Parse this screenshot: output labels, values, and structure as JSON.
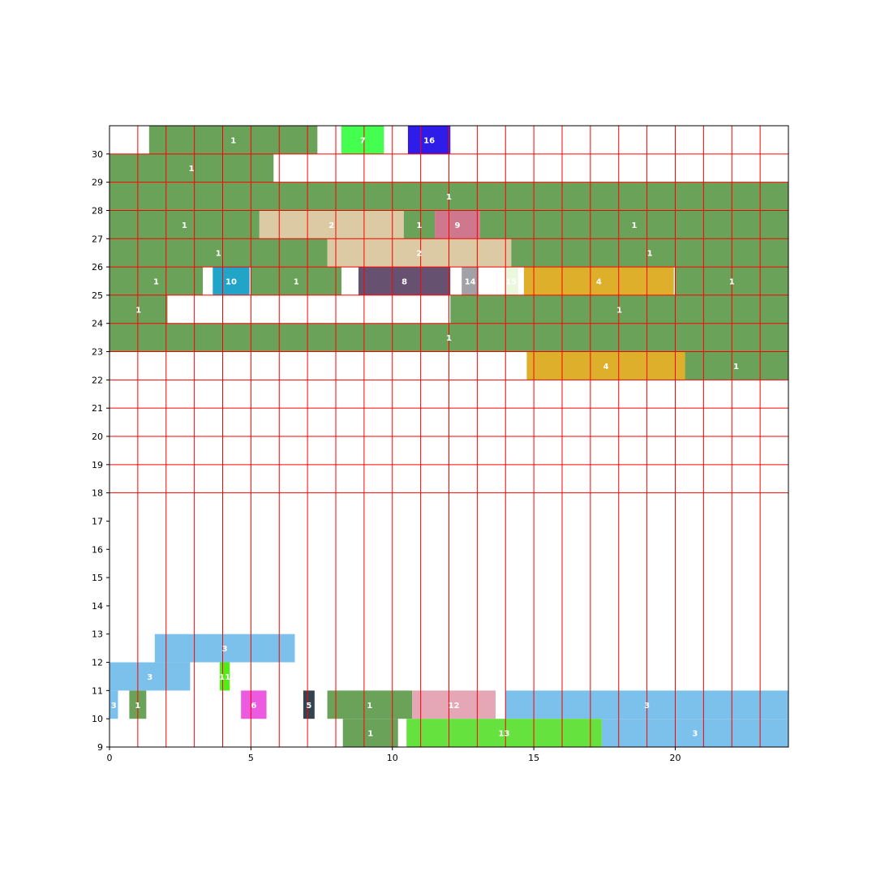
{
  "chart_data": {
    "type": "gantt",
    "title": "",
    "xlabel": "",
    "ylabel": "",
    "xlim": [
      0,
      24
    ],
    "ylim": [
      9,
      31
    ],
    "xticks": [
      0,
      5,
      10,
      15,
      20
    ],
    "yticks": [
      9,
      10,
      11,
      12,
      13,
      14,
      15,
      16,
      17,
      18,
      19,
      20,
      21,
      22,
      23,
      24,
      25,
      26,
      27,
      28,
      29,
      30
    ],
    "grid": {
      "color": "#ff0000",
      "vertical_step": 1,
      "horizontal_step": 1,
      "horizontal_from": 18
    },
    "colors": {
      "1": "#6ba25a",
      "2": "#dbcaa3",
      "3": "#7bc1ec",
      "4": "#ddaf2a",
      "5": "#34444f",
      "6": "#ec5ae0",
      "7": "#44fe50",
      "8": "#665270",
      "9": "#cf778c",
      "10": "#20a4c8",
      "11": "#50ec14",
      "12": "#e5a6b5",
      "13": "#66e23e",
      "14": "#a2a2a6",
      "15": "#eaf9dd",
      "16": "#2e1ce9"
    },
    "bars": [
      {
        "label": "1",
        "x0": 1.4,
        "x1": 7.35,
        "y0": 30,
        "y1": 31
      },
      {
        "label": "1",
        "x0": 0,
        "x1": 5.8,
        "y0": 29,
        "y1": 30
      },
      {
        "label": "1",
        "x0": 0,
        "x1": 24,
        "y0": 28,
        "y1": 29
      },
      {
        "label": "1",
        "x0": 0,
        "x1": 5.3,
        "y0": 27,
        "y1": 28
      },
      {
        "label": "1",
        "x0": 10.4,
        "x1": 11.5,
        "y0": 27,
        "y1": 28
      },
      {
        "label": "1",
        "x0": 13.1,
        "x1": 24,
        "y0": 27,
        "y1": 28
      },
      {
        "label": "1",
        "x0": 0,
        "x1": 7.7,
        "y0": 26,
        "y1": 27
      },
      {
        "label": "1",
        "x0": 14.2,
        "x1": 24,
        "y0": 26,
        "y1": 27
      },
      {
        "label": "1",
        "x0": 0,
        "x1": 3.3,
        "y0": 25,
        "y1": 26
      },
      {
        "label": "1",
        "x0": 5.0,
        "x1": 8.2,
        "y0": 25,
        "y1": 26
      },
      {
        "label": "1",
        "x0": 20.0,
        "x1": 24,
        "y0": 25,
        "y1": 26
      },
      {
        "label": "1",
        "x0": 0,
        "x1": 2.05,
        "y0": 24,
        "y1": 25
      },
      {
        "label": "1",
        "x0": 12.05,
        "x1": 24,
        "y0": 24,
        "y1": 25
      },
      {
        "label": "1",
        "x0": 0,
        "x1": 24,
        "y0": 23,
        "y1": 24
      },
      {
        "label": "1",
        "x0": 20.3,
        "x1": 24,
        "y0": 22,
        "y1": 23
      },
      {
        "label": "1",
        "x0": 0.7,
        "x1": 1.3,
        "y0": 10,
        "y1": 11
      },
      {
        "label": "1",
        "x0": 7.7,
        "x1": 10.7,
        "y0": 10,
        "y1": 11
      },
      {
        "label": "1",
        "x0": 8.25,
        "x1": 10.2,
        "y0": 9,
        "y1": 10
      },
      {
        "label": "2",
        "x0": 5.3,
        "x1": 10.4,
        "y0": 27,
        "y1": 28
      },
      {
        "label": "2",
        "x0": 7.7,
        "x1": 14.2,
        "y0": 26,
        "y1": 27
      },
      {
        "label": "3",
        "x0": 1.6,
        "x1": 6.55,
        "y0": 12,
        "y1": 13
      },
      {
        "label": "3",
        "x0": 0,
        "x1": 2.85,
        "y0": 11,
        "y1": 12
      },
      {
        "label": "3",
        "x0": 0,
        "x1": 0.3,
        "y0": 10,
        "y1": 11
      },
      {
        "label": "3",
        "x0": 14.0,
        "x1": 24,
        "y0": 10,
        "y1": 11
      },
      {
        "label": "3",
        "x0": 17.4,
        "x1": 24,
        "y0": 9,
        "y1": 10
      },
      {
        "label": "4",
        "x0": 14.65,
        "x1": 19.95,
        "y0": 25,
        "y1": 26
      },
      {
        "label": "4",
        "x0": 14.75,
        "x1": 20.35,
        "y0": 22,
        "y1": 23
      },
      {
        "label": "5",
        "x0": 6.85,
        "x1": 7.25,
        "y0": 10,
        "y1": 11
      },
      {
        "label": "6",
        "x0": 4.65,
        "x1": 5.55,
        "y0": 10,
        "y1": 11
      },
      {
        "label": "7",
        "x0": 8.2,
        "x1": 9.7,
        "y0": 30,
        "y1": 31
      },
      {
        "label": "8",
        "x0": 8.8,
        "x1": 12.05,
        "y0": 25,
        "y1": 26
      },
      {
        "label": "9",
        "x0": 11.5,
        "x1": 13.1,
        "y0": 27,
        "y1": 28
      },
      {
        "label": "10",
        "x0": 3.65,
        "x1": 4.95,
        "y0": 25,
        "y1": 26
      },
      {
        "label": "11",
        "x0": 3.9,
        "x1": 4.25,
        "y0": 11,
        "y1": 12
      },
      {
        "label": "12",
        "x0": 10.7,
        "x1": 13.65,
        "y0": 10,
        "y1": 11
      },
      {
        "label": "13",
        "x0": 10.5,
        "x1": 17.4,
        "y0": 9,
        "y1": 10
      },
      {
        "label": "14",
        "x0": 12.45,
        "x1": 13.05,
        "y0": 25,
        "y1": 26
      },
      {
        "label": "15",
        "x0": 13.95,
        "x1": 14.45,
        "y0": 25,
        "y1": 26
      },
      {
        "label": "16",
        "x0": 10.55,
        "x1": 12.05,
        "y0": 30,
        "y1": 31
      }
    ]
  }
}
